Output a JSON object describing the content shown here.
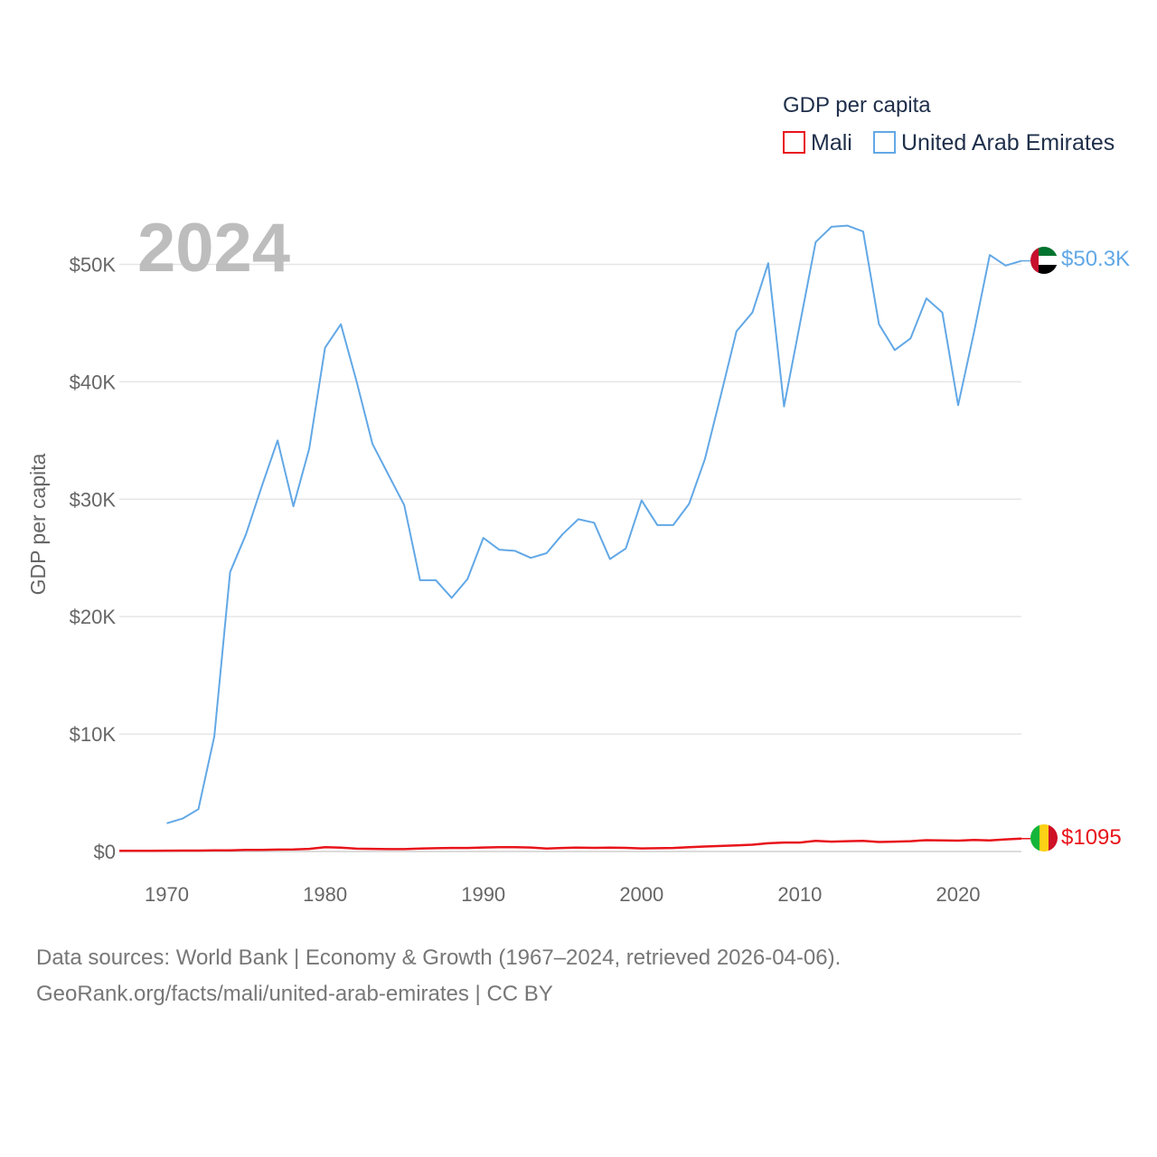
{
  "chart_data": {
    "type": "line",
    "year_label": "2024",
    "ylabel": "GDP per capita",
    "xlim": [
      1967,
      2024
    ],
    "ylim": [
      0,
      55000
    ],
    "y_ticks": [
      {
        "value": 0,
        "label": "$0"
      },
      {
        "value": 10000,
        "label": "$10K"
      },
      {
        "value": 20000,
        "label": "$20K"
      },
      {
        "value": 30000,
        "label": "$30K"
      },
      {
        "value": 40000,
        "label": "$40K"
      },
      {
        "value": 50000,
        "label": "$50K"
      }
    ],
    "x_ticks": [
      {
        "value": 1970,
        "label": "1970"
      },
      {
        "value": 1980,
        "label": "1980"
      },
      {
        "value": 1990,
        "label": "1990"
      },
      {
        "value": 2000,
        "label": "2000"
      },
      {
        "value": 2010,
        "label": "2010"
      },
      {
        "value": 2020,
        "label": "2020"
      }
    ],
    "legend": {
      "title": "GDP per capita",
      "entries": [
        {
          "name": "Mali",
          "color": "#e8141b"
        },
        {
          "name": "United Arab Emirates",
          "color": "#62a8e6"
        }
      ]
    },
    "series": [
      {
        "name": "Mali",
        "color": "#e8141b",
        "end_label": "$1095",
        "flag": "mali-flag",
        "x": [
          1967,
          1968,
          1969,
          1970,
          1971,
          1972,
          1973,
          1974,
          1975,
          1976,
          1977,
          1978,
          1979,
          1980,
          1981,
          1982,
          1983,
          1984,
          1985,
          1986,
          1987,
          1988,
          1989,
          1990,
          1991,
          1992,
          1993,
          1994,
          1995,
          1996,
          1997,
          1998,
          1999,
          2000,
          2001,
          2002,
          2003,
          2004,
          2005,
          2006,
          2007,
          2008,
          2009,
          2010,
          2011,
          2012,
          2013,
          2014,
          2015,
          2016,
          2017,
          2018,
          2019,
          2020,
          2021,
          2022,
          2023,
          2024
        ],
        "values": [
          60,
          62,
          65,
          66,
          75,
          80,
          90,
          100,
          130,
          140,
          160,
          180,
          220,
          370,
          320,
          240,
          220,
          200,
          200,
          250,
          280,
          300,
          300,
          340,
          360,
          370,
          340,
          250,
          300,
          330,
          310,
          320,
          310,
          260,
          280,
          300,
          370,
          420,
          470,
          520,
          580,
          700,
          760,
          760,
          900,
          840,
          880,
          910,
          810,
          840,
          880,
          960,
          940,
          920,
          980,
          950,
          1030,
          1095
        ]
      },
      {
        "name": "United Arab Emirates",
        "color": "#62a8e6",
        "end_label": "$50.3K",
        "flag": "uae-flag",
        "x": [
          1970,
          1971,
          1972,
          1973,
          1974,
          1975,
          1976,
          1977,
          1978,
          1979,
          1980,
          1981,
          1982,
          1983,
          1984,
          1985,
          1986,
          1987,
          1988,
          1989,
          1990,
          1991,
          1992,
          1993,
          1994,
          1995,
          1996,
          1997,
          1998,
          1999,
          2000,
          2001,
          2002,
          2003,
          2004,
          2005,
          2006,
          2007,
          2008,
          2009,
          2010,
          2011,
          2012,
          2013,
          2014,
          2015,
          2016,
          2017,
          2018,
          2019,
          2020,
          2021,
          2022,
          2023,
          2024
        ],
        "values": [
          2400,
          2800,
          3600,
          9800,
          23800,
          27000,
          31100,
          35000,
          29400,
          34300,
          42900,
          44900,
          40000,
          34700,
          32100,
          29500,
          23100,
          23100,
          21600,
          23200,
          26700,
          25700,
          25600,
          25000,
          25400,
          27000,
          28300,
          28000,
          24900,
          25800,
          29900,
          27800,
          27800,
          29600,
          33400,
          38800,
          44300,
          45900,
          50100,
          37900,
          44900,
          51900,
          53200,
          53300,
          52800,
          44900,
          42700,
          43700,
          47100,
          45900,
          38000,
          44200,
          50800,
          49900,
          50300
        ]
      }
    ]
  },
  "footer": {
    "line1": "Data sources: World Bank | Economy & Growth (1967–2024, retrieved 2026-04-06).",
    "line2": "GeoRank.org/facts/mali/united-arab-emirates | CC BY"
  }
}
